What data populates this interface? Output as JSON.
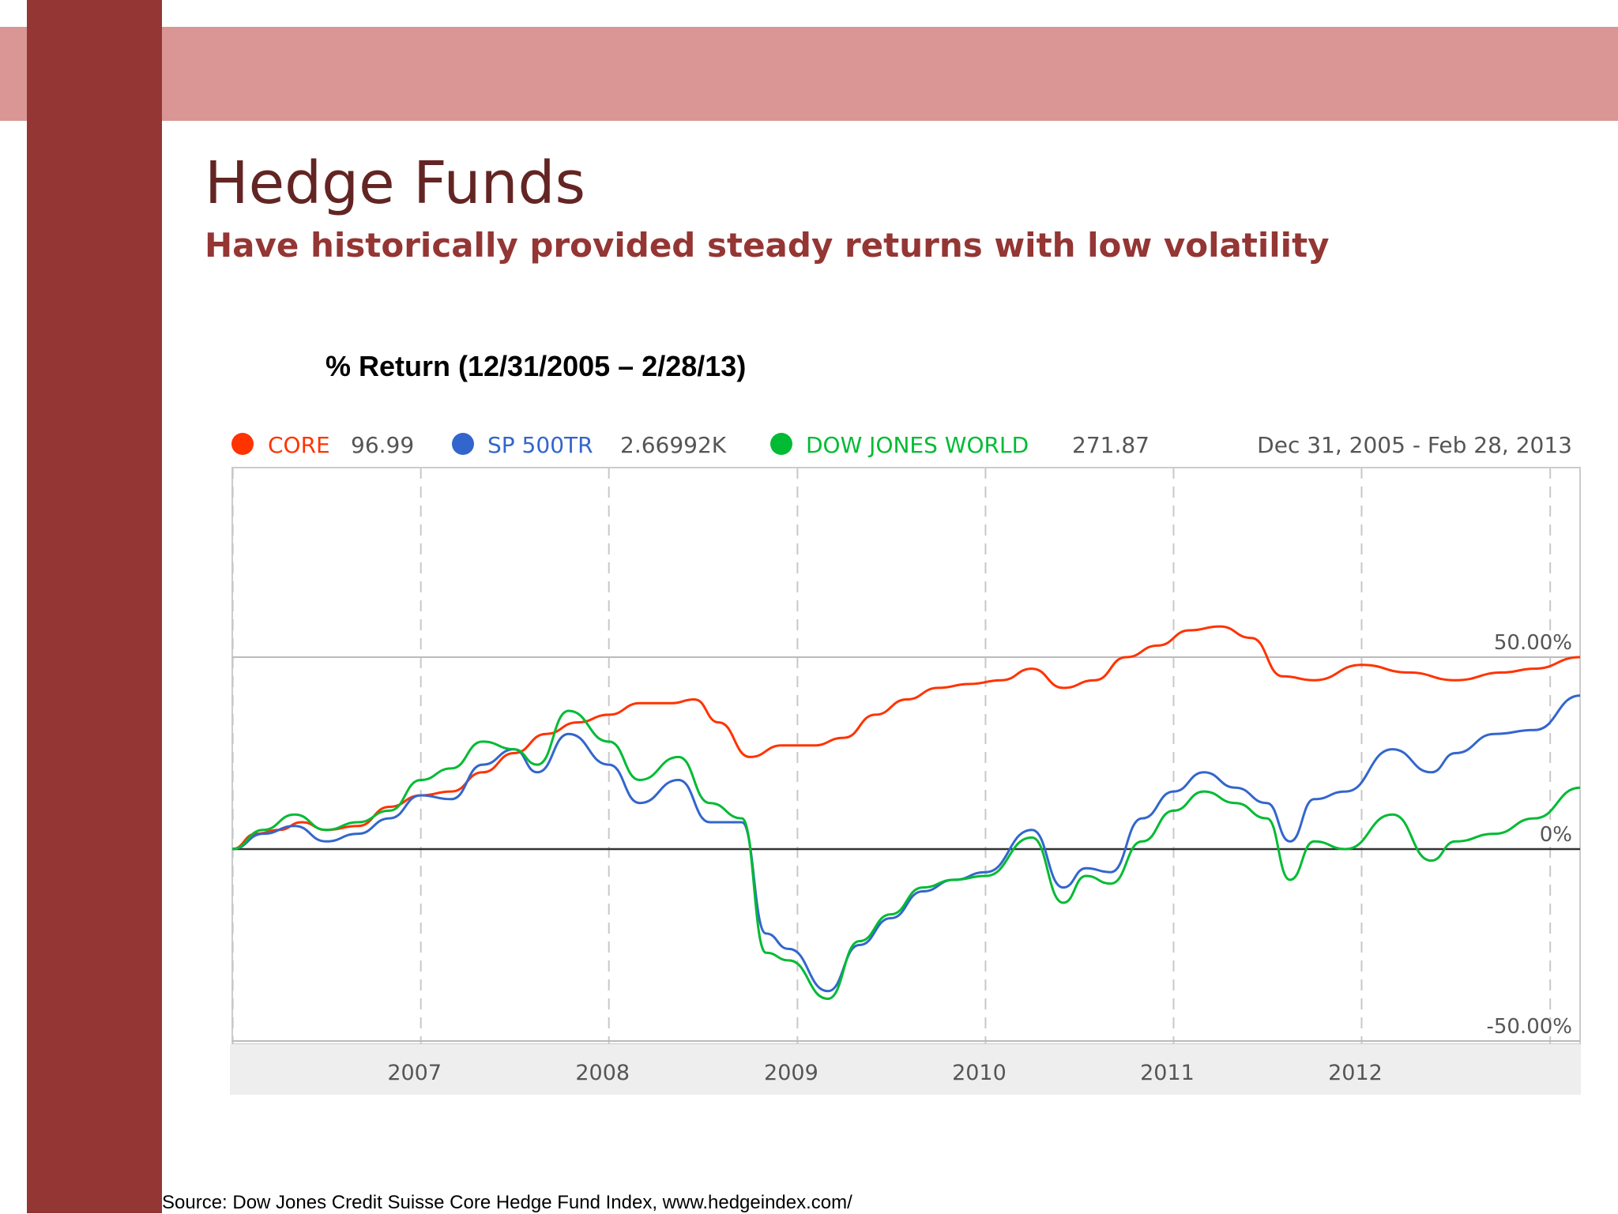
{
  "slide": {
    "title": "Hedge Funds",
    "subtitle": "Have historically provided steady returns with low volatility",
    "chart_heading": "% Return (12/31/2005 – 2/28/13)",
    "source": "Source: Dow Jones Credit Suisse Core Hedge Fund Index, www.hedgeindex.com/"
  },
  "colors": {
    "band": "#d99694",
    "pillar": "#943634",
    "title": "#632523",
    "subtitle": "#943634"
  },
  "chart_data": {
    "type": "line",
    "date_range": "Dec 31, 2005 - Feb 28, 2013",
    "x_tick_labels": [
      "2007",
      "2008",
      "2009",
      "2010",
      "2011",
      "2012"
    ],
    "y_tick_labels": [
      "50.00%",
      "0%",
      "-50.00%"
    ],
    "y_unit": "%",
    "ylim": [
      -52,
      100
    ],
    "grid": true,
    "legend_position": "top",
    "series": [
      {
        "name": "CORE",
        "legend_value": "96.99",
        "color": "#ff3300",
        "points": [
          [
            "2005-12-31",
            0
          ],
          [
            "2006-02-15",
            4
          ],
          [
            "2006-04-01",
            5
          ],
          [
            "2006-05-15",
            7
          ],
          [
            "2006-07-01",
            5
          ],
          [
            "2006-09-01",
            6
          ],
          [
            "2006-11-01",
            11
          ],
          [
            "2007-01-01",
            14
          ],
          [
            "2007-03-01",
            15
          ],
          [
            "2007-05-01",
            20
          ],
          [
            "2007-07-01",
            25
          ],
          [
            "2007-09-01",
            30
          ],
          [
            "2007-11-01",
            33
          ],
          [
            "2008-01-01",
            35
          ],
          [
            "2008-03-01",
            38
          ],
          [
            "2008-05-01",
            38
          ],
          [
            "2008-06-15",
            39
          ],
          [
            "2008-08-01",
            33
          ],
          [
            "2008-10-01",
            24
          ],
          [
            "2008-12-01",
            27
          ],
          [
            "2009-02-01",
            27
          ],
          [
            "2009-04-01",
            29
          ],
          [
            "2009-06-01",
            35
          ],
          [
            "2009-08-01",
            39
          ],
          [
            "2009-10-01",
            42
          ],
          [
            "2009-12-01",
            43
          ],
          [
            "2010-02-01",
            44
          ],
          [
            "2010-04-01",
            47
          ],
          [
            "2010-06-01",
            42
          ],
          [
            "2010-08-01",
            44
          ],
          [
            "2010-10-01",
            50
          ],
          [
            "2010-12-01",
            53
          ],
          [
            "2011-02-01",
            57
          ],
          [
            "2011-04-01",
            58
          ],
          [
            "2011-06-01",
            55
          ],
          [
            "2011-08-01",
            45
          ],
          [
            "2011-10-01",
            44
          ],
          [
            "2012-01-01",
            48
          ],
          [
            "2012-04-01",
            46
          ],
          [
            "2012-07-01",
            44
          ],
          [
            "2012-10-01",
            46
          ],
          [
            "2012-12-01",
            47
          ],
          [
            "2013-02-28",
            50
          ]
        ]
      },
      {
        "name": "SP 500TR",
        "legend_value": "2.66992K",
        "color": "#3366cc",
        "points": [
          [
            "2005-12-31",
            0
          ],
          [
            "2006-03-01",
            4
          ],
          [
            "2006-05-01",
            6
          ],
          [
            "2006-07-01",
            2
          ],
          [
            "2006-09-01",
            4
          ],
          [
            "2006-11-01",
            8
          ],
          [
            "2007-01-01",
            14
          ],
          [
            "2007-03-01",
            13
          ],
          [
            "2007-05-01",
            22
          ],
          [
            "2007-07-01",
            26
          ],
          [
            "2007-08-15",
            20
          ],
          [
            "2007-10-15",
            30
          ],
          [
            "2008-01-01",
            22
          ],
          [
            "2008-03-01",
            12
          ],
          [
            "2008-05-15",
            18
          ],
          [
            "2008-07-15",
            7
          ],
          [
            "2008-09-15",
            7
          ],
          [
            "2008-11-01",
            -22
          ],
          [
            "2008-12-15",
            -26
          ],
          [
            "2009-03-01",
            -37
          ],
          [
            "2009-05-01",
            -25
          ],
          [
            "2009-07-01",
            -18
          ],
          [
            "2009-09-01",
            -11
          ],
          [
            "2009-11-01",
            -8
          ],
          [
            "2010-01-01",
            -6
          ],
          [
            "2010-04-01",
            5
          ],
          [
            "2010-06-01",
            -10
          ],
          [
            "2010-07-15",
            -5
          ],
          [
            "2010-09-01",
            -6
          ],
          [
            "2010-11-01",
            8
          ],
          [
            "2011-01-01",
            15
          ],
          [
            "2011-03-01",
            20
          ],
          [
            "2011-05-01",
            16
          ],
          [
            "2011-07-01",
            12
          ],
          [
            "2011-08-15",
            2
          ],
          [
            "2011-10-01",
            13
          ],
          [
            "2011-12-01",
            15
          ],
          [
            "2012-03-01",
            26
          ],
          [
            "2012-05-15",
            20
          ],
          [
            "2012-07-01",
            25
          ],
          [
            "2012-09-15",
            30
          ],
          [
            "2012-12-01",
            31
          ],
          [
            "2013-02-28",
            40
          ]
        ]
      },
      {
        "name": "DOW JONES WORLD",
        "legend_value": "271.87",
        "color": "#00bb33",
        "points": [
          [
            "2005-12-31",
            0
          ],
          [
            "2006-03-01",
            5
          ],
          [
            "2006-05-01",
            9
          ],
          [
            "2006-07-01",
            5
          ],
          [
            "2006-09-01",
            7
          ],
          [
            "2006-11-01",
            10
          ],
          [
            "2007-01-01",
            18
          ],
          [
            "2007-03-01",
            21
          ],
          [
            "2007-05-01",
            28
          ],
          [
            "2007-07-01",
            26
          ],
          [
            "2007-08-15",
            22
          ],
          [
            "2007-10-15",
            36
          ],
          [
            "2008-01-01",
            28
          ],
          [
            "2008-03-01",
            18
          ],
          [
            "2008-05-15",
            24
          ],
          [
            "2008-07-15",
            12
          ],
          [
            "2008-09-15",
            8
          ],
          [
            "2008-11-01",
            -27
          ],
          [
            "2008-12-15",
            -29
          ],
          [
            "2009-03-01",
            -39
          ],
          [
            "2009-05-01",
            -24
          ],
          [
            "2009-07-01",
            -17
          ],
          [
            "2009-09-01",
            -10
          ],
          [
            "2009-11-01",
            -8
          ],
          [
            "2010-01-01",
            -7
          ],
          [
            "2010-04-01",
            3
          ],
          [
            "2010-06-01",
            -14
          ],
          [
            "2010-07-15",
            -7
          ],
          [
            "2010-09-01",
            -9
          ],
          [
            "2010-11-01",
            2
          ],
          [
            "2011-01-01",
            10
          ],
          [
            "2011-03-01",
            15
          ],
          [
            "2011-05-01",
            12
          ],
          [
            "2011-07-01",
            8
          ],
          [
            "2011-08-15",
            -8
          ],
          [
            "2011-10-01",
            2
          ],
          [
            "2011-12-01",
            0
          ],
          [
            "2012-03-01",
            9
          ],
          [
            "2012-05-15",
            -3
          ],
          [
            "2012-07-01",
            2
          ],
          [
            "2012-09-15",
            4
          ],
          [
            "2012-12-01",
            8
          ],
          [
            "2013-02-28",
            16
          ]
        ]
      }
    ]
  }
}
